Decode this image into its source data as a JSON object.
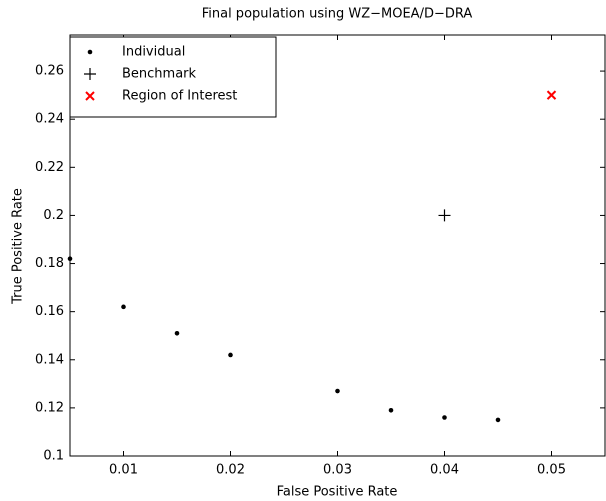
{
  "chart_data": {
    "type": "scatter",
    "title": "Final population using WZ−MOEA/D−DRA",
    "x_label": "False Positive Rate",
    "y_label": "True Positive Rate",
    "xlim": [
      0.005,
      0.055
    ],
    "ylim": [
      0.1,
      0.275
    ],
    "xticks": [
      0.01,
      0.02,
      0.03,
      0.04,
      0.05
    ],
    "yticks": [
      0.1,
      0.12,
      0.14,
      0.16,
      0.18,
      0.2,
      0.22,
      0.24,
      0.26
    ],
    "legend": "upper left",
    "series": [
      {
        "name": "Individual",
        "color": "#000000",
        "marker": "dot",
        "x": [
          0.005,
          0.01,
          0.015,
          0.02,
          0.03,
          0.035,
          0.04,
          0.045
        ],
        "values": [
          0.182,
          0.162,
          0.151,
          0.142,
          0.127,
          0.119,
          0.116,
          0.115
        ]
      },
      {
        "name": "Benchmark",
        "color": "#000000",
        "marker": "plus",
        "x": [
          0.04
        ],
        "values": [
          0.2
        ]
      },
      {
        "name": "Region of Interest",
        "color": "#ff0000",
        "marker": "x",
        "x": [
          0.05
        ],
        "values": [
          0.25
        ]
      }
    ]
  }
}
